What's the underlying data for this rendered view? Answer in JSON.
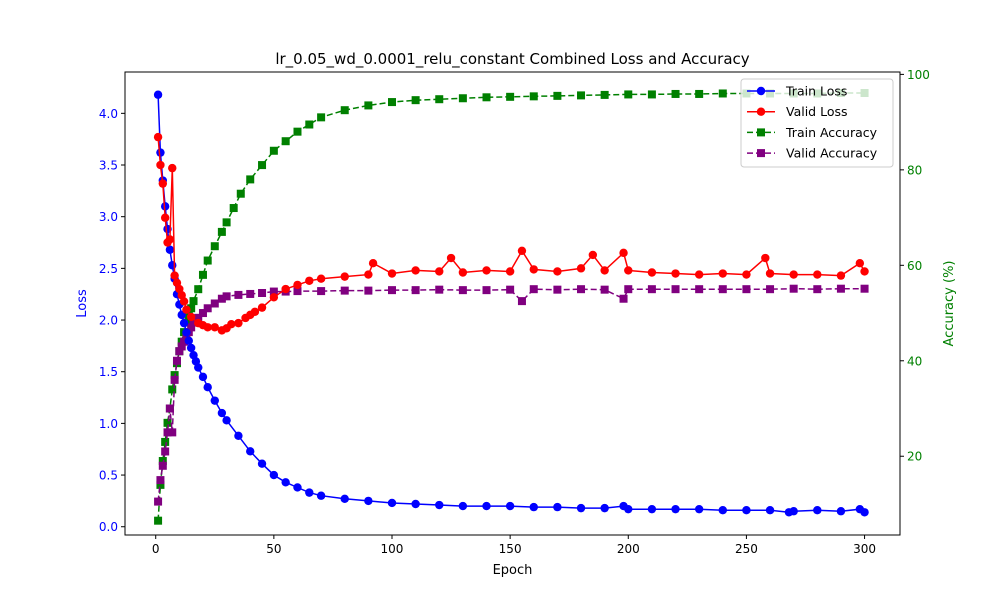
{
  "chart_data": {
    "type": "line",
    "title": "lr_0.05_wd_0.0001_relu_constant Combined Loss and Accuracy",
    "xlabel": "Epoch",
    "ylabel_left": "Loss",
    "ylabel_right": "Accuracy (%)",
    "xlim": [
      -13,
      315
    ],
    "ylim_left": [
      -0.08,
      4.4
    ],
    "ylim_right": [
      3.5,
      100.5
    ],
    "xticks": [
      "0",
      "50",
      "100",
      "150",
      "200",
      "250",
      "300"
    ],
    "yticks_left": [
      "0.0",
      "0.5",
      "1.0",
      "1.5",
      "2.0",
      "2.5",
      "3.0",
      "3.5",
      "4.0"
    ],
    "yticks_right": [
      "20",
      "40",
      "60",
      "80",
      "100"
    ],
    "grid": false,
    "legend_position": "top-right",
    "colors": {
      "left_axis": "#0000ff",
      "right_axis": "#008000"
    },
    "series": [
      {
        "name": "Train Loss",
        "axis": "left",
        "color": "#0000ff",
        "marker": "circle",
        "linestyle": "solid",
        "x": [
          1,
          2,
          3,
          4,
          5,
          6,
          7,
          8,
          9,
          10,
          11,
          12,
          13,
          14,
          15,
          16,
          17,
          18,
          20,
          22,
          25,
          28,
          30,
          35,
          40,
          45,
          50,
          55,
          60,
          65,
          70,
          80,
          90,
          100,
          110,
          120,
          130,
          140,
          150,
          160,
          170,
          180,
          190,
          198,
          200,
          210,
          220,
          230,
          240,
          250,
          260,
          268,
          270,
          280,
          290,
          298,
          300
        ],
        "y": [
          4.18,
          3.62,
          3.35,
          3.1,
          2.88,
          2.68,
          2.53,
          2.4,
          2.25,
          2.15,
          2.05,
          1.97,
          1.88,
          1.8,
          1.73,
          1.66,
          1.6,
          1.54,
          1.45,
          1.35,
          1.22,
          1.1,
          1.03,
          0.88,
          0.73,
          0.61,
          0.5,
          0.43,
          0.38,
          0.33,
          0.3,
          0.27,
          0.25,
          0.23,
          0.22,
          0.21,
          0.2,
          0.2,
          0.2,
          0.19,
          0.19,
          0.18,
          0.18,
          0.2,
          0.17,
          0.17,
          0.17,
          0.17,
          0.16,
          0.16,
          0.16,
          0.14,
          0.15,
          0.16,
          0.15,
          0.17,
          0.14
        ]
      },
      {
        "name": "Valid Loss",
        "axis": "left",
        "color": "#ff0000",
        "marker": "circle",
        "linestyle": "solid",
        "x": [
          1,
          2,
          3,
          4,
          5,
          6,
          7,
          8,
          9,
          10,
          11,
          12,
          13,
          15,
          18,
          20,
          22,
          25,
          28,
          30,
          32,
          35,
          38,
          40,
          42,
          45,
          50,
          55,
          60,
          65,
          70,
          80,
          90,
          92,
          100,
          110,
          120,
          125,
          130,
          140,
          150,
          155,
          160,
          170,
          180,
          185,
          190,
          198,
          200,
          210,
          220,
          230,
          240,
          250,
          258,
          260,
          270,
          280,
          290,
          298,
          300
        ],
        "y": [
          3.77,
          3.5,
          3.32,
          2.99,
          2.75,
          2.78,
          3.47,
          2.43,
          2.36,
          2.3,
          2.24,
          2.18,
          2.1,
          2.03,
          1.97,
          1.95,
          1.93,
          1.93,
          1.9,
          1.92,
          1.96,
          1.97,
          2.02,
          2.05,
          2.08,
          2.12,
          2.22,
          2.3,
          2.34,
          2.38,
          2.4,
          2.42,
          2.44,
          2.55,
          2.45,
          2.48,
          2.47,
          2.6,
          2.46,
          2.48,
          2.47,
          2.67,
          2.49,
          2.47,
          2.5,
          2.63,
          2.48,
          2.65,
          2.48,
          2.46,
          2.45,
          2.44,
          2.45,
          2.44,
          2.6,
          2.45,
          2.44,
          2.44,
          2.43,
          2.55,
          2.47
        ]
      },
      {
        "name": "Train Accuracy",
        "axis": "right",
        "color": "#008000",
        "marker": "square",
        "linestyle": "dashed",
        "x": [
          1,
          2,
          3,
          4,
          5,
          6,
          7,
          8,
          9,
          10,
          11,
          12,
          13,
          14,
          15,
          16,
          18,
          20,
          22,
          25,
          28,
          30,
          33,
          36,
          40,
          45,
          50,
          55,
          60,
          65,
          70,
          80,
          90,
          100,
          110,
          120,
          130,
          140,
          150,
          160,
          170,
          180,
          190,
          200,
          210,
          220,
          230,
          240,
          250,
          260,
          270,
          280,
          290,
          300
        ],
        "y": [
          6.5,
          14,
          19,
          23,
          27,
          30,
          34,
          37,
          39.5,
          42,
          44,
          46,
          48,
          49.5,
          51,
          52.5,
          55,
          58,
          61,
          64,
          67,
          69,
          72,
          75,
          78,
          81,
          84,
          86,
          88,
          89.5,
          91,
          92.5,
          93.5,
          94.2,
          94.6,
          94.8,
          95,
          95.2,
          95.3,
          95.4,
          95.5,
          95.6,
          95.7,
          95.8,
          95.8,
          95.9,
          95.9,
          96,
          96,
          96,
          96,
          96,
          96.1,
          96.1
        ]
      },
      {
        "name": "Valid Accuracy",
        "axis": "right",
        "color": "#800080",
        "marker": "square",
        "linestyle": "dashed",
        "x": [
          1,
          2,
          3,
          4,
          5,
          6,
          7,
          8,
          9,
          10,
          11,
          12,
          13,
          14,
          15,
          16,
          18,
          20,
          22,
          25,
          28,
          30,
          35,
          40,
          45,
          50,
          55,
          60,
          70,
          80,
          90,
          100,
          110,
          120,
          130,
          140,
          150,
          155,
          160,
          170,
          180,
          190,
          198,
          200,
          210,
          220,
          230,
          240,
          250,
          260,
          270,
          280,
          290,
          300
        ],
        "y": [
          10.5,
          15,
          18,
          21,
          25,
          30,
          25,
          36,
          40,
          42,
          43,
          44,
          45,
          46,
          47,
          48,
          49,
          50,
          51,
          52,
          53,
          53.5,
          53.8,
          54,
          54.2,
          54.5,
          54.5,
          54.6,
          54.6,
          54.7,
          54.7,
          54.8,
          54.8,
          54.9,
          54.8,
          54.8,
          54.9,
          52.5,
          55,
          54.9,
          55,
          54.9,
          53,
          55,
          55,
          55,
          55,
          55,
          55,
          55,
          55.1,
          55,
          55.1,
          55.1
        ]
      }
    ]
  }
}
